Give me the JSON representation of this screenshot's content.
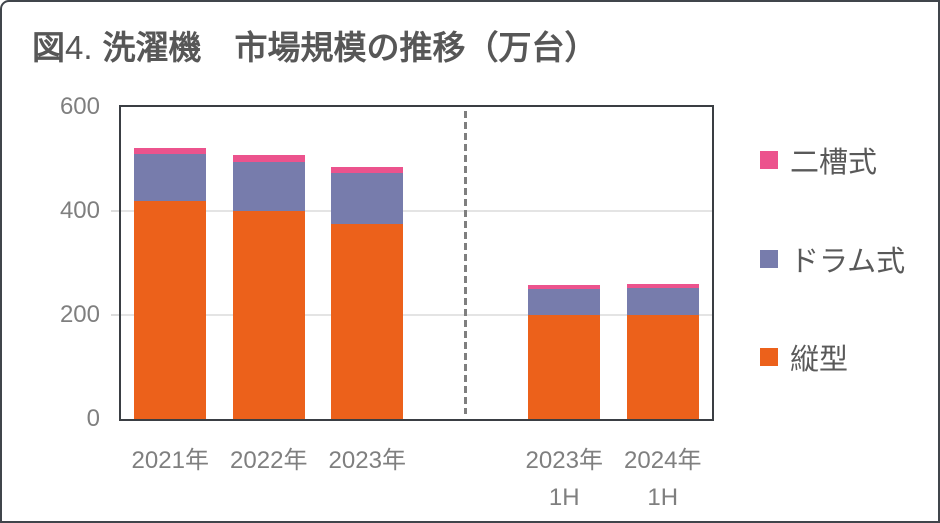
{
  "header": {
    "figure_label": "図",
    "figure_number": "4.",
    "title": "洗濯機　市場規模の推移（万台）"
  },
  "chart_data": {
    "type": "bar",
    "stacked": true,
    "title": "図4. 洗濯機 市場規模の推移（万台）",
    "unit": "万台",
    "categories": [
      "2021年",
      "2022年",
      "2023年",
      "2023年 1H",
      "2024年 1H"
    ],
    "category_label_lines": [
      [
        "2021年"
      ],
      [
        "2022年"
      ],
      [
        "2023年"
      ],
      [
        "2023年",
        "1H"
      ],
      [
        "2024年",
        "1H"
      ]
    ],
    "category_slots": [
      0,
      1,
      2,
      4,
      5
    ],
    "slot_count": 6,
    "divider_slot": 3,
    "series": [
      {
        "name": "縦型",
        "color": "#EC611B",
        "values": [
          420,
          400,
          375,
          200,
          200
        ]
      },
      {
        "name": "ドラム式",
        "color": "#777CAC",
        "values": [
          90,
          95,
          98,
          50,
          51
        ]
      },
      {
        "name": "二槽式",
        "color": "#EC538D",
        "values": [
          12,
          13,
          12,
          7,
          8
        ]
      }
    ],
    "totals": [
      522,
      508,
      485,
      257,
      259
    ],
    "legend_order_top_to_bottom": [
      "二槽式",
      "ドラム式",
      "縦型"
    ],
    "legend_position": "right",
    "grid_on": true,
    "gridline_values": [
      400,
      200
    ],
    "y_axis": {
      "min": 0,
      "max": 600,
      "tick_values": [
        600,
        400,
        200,
        0
      ],
      "tick_labels": [
        "600",
        "400",
        "200",
        "0"
      ]
    },
    "xlabel": "",
    "ylabel": ""
  },
  "colors": {
    "tate_orange": "#EC611B",
    "drum_purple": "#777CAC",
    "niso_pink": "#EC538D",
    "title_text": "#575757",
    "axis_text": "#7F7F7F",
    "plot_border": "#3A3E43",
    "gridline": "#E4E4E4",
    "card_border": "#40454B",
    "divider": "#7F7F7F"
  }
}
